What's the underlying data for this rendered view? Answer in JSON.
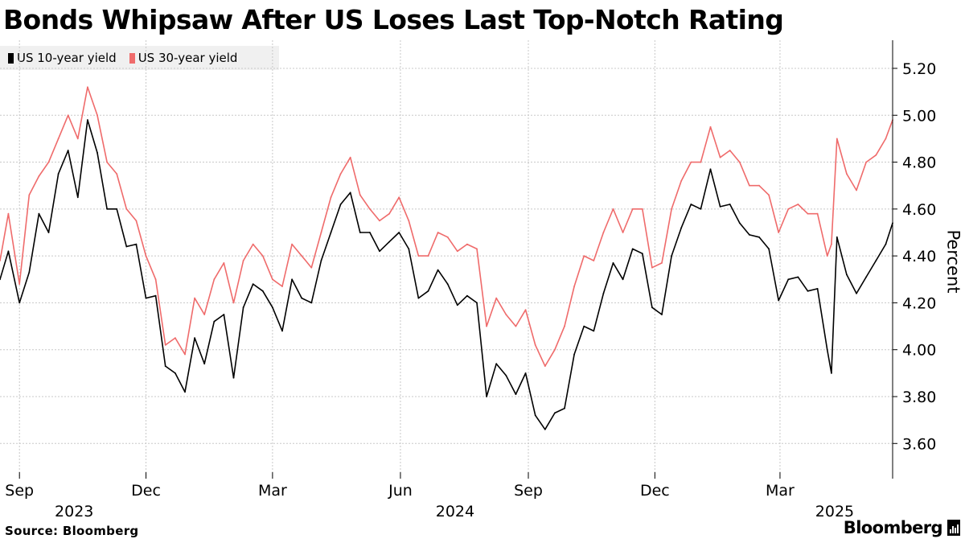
{
  "title": "Bonds Whipsaw After US Loses Last Top-Notch Rating",
  "legend": [
    {
      "label": "US 10-year yield",
      "color": "#000000"
    },
    {
      "label": "US 30-year yield",
      "color": "#ef6b6b"
    }
  ],
  "source": "Source: Bloomberg",
  "brand": "Bloomberg",
  "colors": {
    "ten_year": "#000000",
    "thirty_year": "#ef6b6b",
    "grid": "#c8c8c8",
    "legend_bg": "#f0f0f0"
  },
  "chart_data": {
    "type": "line",
    "ylabel": "Percent",
    "xlabel": "",
    "ylim": [
      3.45,
      5.32
    ],
    "y_ticks": [
      3.6,
      3.8,
      4.0,
      4.2,
      4.4,
      4.6,
      4.8,
      5.0,
      5.2
    ],
    "y_tick_labels": [
      "3.60",
      "3.80",
      "4.00",
      "4.20",
      "4.40",
      "4.60",
      "4.80",
      "5.00",
      "5.20"
    ],
    "y_axis_position": "right",
    "grid": true,
    "legend_position": "top-left",
    "x_range": [
      "2023-08-18",
      "2025-05-21"
    ],
    "x_ticks": [
      {
        "date": "2023-09-01",
        "label": "Sep",
        "year": "2023"
      },
      {
        "date": "2023-12-01",
        "label": "Dec",
        "year": ""
      },
      {
        "date": "2024-03-01",
        "label": "Mar",
        "year": ""
      },
      {
        "date": "2024-06-01",
        "label": "Jun",
        "year": "2024"
      },
      {
        "date": "2024-09-01",
        "label": "Sep",
        "year": ""
      },
      {
        "date": "2024-12-01",
        "label": "Dec",
        "year": ""
      },
      {
        "date": "2025-03-01",
        "label": "Mar",
        "year": "2025"
      }
    ],
    "series": [
      {
        "name": "US 10-year yield",
        "color": "#000000",
        "points": [
          [
            "2023-08-18",
            4.3
          ],
          [
            "2023-08-24",
            4.42
          ],
          [
            "2023-09-01",
            4.2
          ],
          [
            "2023-09-08",
            4.33
          ],
          [
            "2023-09-15",
            4.58
          ],
          [
            "2023-09-22",
            4.5
          ],
          [
            "2023-09-29",
            4.75
          ],
          [
            "2023-10-06",
            4.85
          ],
          [
            "2023-10-13",
            4.65
          ],
          [
            "2023-10-20",
            4.98
          ],
          [
            "2023-10-27",
            4.84
          ],
          [
            "2023-11-03",
            4.6
          ],
          [
            "2023-11-10",
            4.6
          ],
          [
            "2023-11-17",
            4.44
          ],
          [
            "2023-11-24",
            4.45
          ],
          [
            "2023-12-01",
            4.22
          ],
          [
            "2023-12-08",
            4.23
          ],
          [
            "2023-12-15",
            3.93
          ],
          [
            "2023-12-22",
            3.9
          ],
          [
            "2023-12-29",
            3.82
          ],
          [
            "2024-01-05",
            4.05
          ],
          [
            "2024-01-12",
            3.94
          ],
          [
            "2024-01-19",
            4.12
          ],
          [
            "2024-01-26",
            4.15
          ],
          [
            "2024-02-02",
            3.88
          ],
          [
            "2024-02-09",
            4.18
          ],
          [
            "2024-02-16",
            4.28
          ],
          [
            "2024-02-23",
            4.25
          ],
          [
            "2024-03-01",
            4.18
          ],
          [
            "2024-03-08",
            4.08
          ],
          [
            "2024-03-15",
            4.3
          ],
          [
            "2024-03-22",
            4.22
          ],
          [
            "2024-03-29",
            4.2
          ],
          [
            "2024-04-05",
            4.38
          ],
          [
            "2024-04-12",
            4.5
          ],
          [
            "2024-04-19",
            4.62
          ],
          [
            "2024-04-26",
            4.67
          ],
          [
            "2024-05-03",
            4.5
          ],
          [
            "2024-05-10",
            4.5
          ],
          [
            "2024-05-17",
            4.42
          ],
          [
            "2024-05-24",
            4.46
          ],
          [
            "2024-05-31",
            4.5
          ],
          [
            "2024-06-07",
            4.43
          ],
          [
            "2024-06-14",
            4.22
          ],
          [
            "2024-06-21",
            4.25
          ],
          [
            "2024-06-28",
            4.34
          ],
          [
            "2024-07-05",
            4.28
          ],
          [
            "2024-07-12",
            4.19
          ],
          [
            "2024-07-19",
            4.23
          ],
          [
            "2024-07-26",
            4.2
          ],
          [
            "2024-08-02",
            3.8
          ],
          [
            "2024-08-09",
            3.94
          ],
          [
            "2024-08-16",
            3.89
          ],
          [
            "2024-08-23",
            3.81
          ],
          [
            "2024-08-30",
            3.9
          ],
          [
            "2024-09-06",
            3.72
          ],
          [
            "2024-09-13",
            3.66
          ],
          [
            "2024-09-20",
            3.73
          ],
          [
            "2024-09-27",
            3.75
          ],
          [
            "2024-10-04",
            3.98
          ],
          [
            "2024-10-11",
            4.1
          ],
          [
            "2024-10-18",
            4.08
          ],
          [
            "2024-10-25",
            4.24
          ],
          [
            "2024-11-01",
            4.37
          ],
          [
            "2024-11-08",
            4.3
          ],
          [
            "2024-11-15",
            4.43
          ],
          [
            "2024-11-22",
            4.41
          ],
          [
            "2024-11-29",
            4.18
          ],
          [
            "2024-12-06",
            4.15
          ],
          [
            "2024-12-13",
            4.4
          ],
          [
            "2024-12-20",
            4.52
          ],
          [
            "2024-12-27",
            4.62
          ],
          [
            "2025-01-03",
            4.6
          ],
          [
            "2025-01-10",
            4.77
          ],
          [
            "2025-01-17",
            4.61
          ],
          [
            "2025-01-24",
            4.62
          ],
          [
            "2025-01-31",
            4.54
          ],
          [
            "2025-02-07",
            4.49
          ],
          [
            "2025-02-14",
            4.48
          ],
          [
            "2025-02-21",
            4.43
          ],
          [
            "2025-02-28",
            4.21
          ],
          [
            "2025-03-07",
            4.3
          ],
          [
            "2025-03-14",
            4.31
          ],
          [
            "2025-03-21",
            4.25
          ],
          [
            "2025-03-28",
            4.26
          ],
          [
            "2025-04-04",
            4.0
          ],
          [
            "2025-04-07",
            3.9
          ],
          [
            "2025-04-11",
            4.48
          ],
          [
            "2025-04-18",
            4.32
          ],
          [
            "2025-04-25",
            4.24
          ],
          [
            "2025-05-02",
            4.31
          ],
          [
            "2025-05-09",
            4.38
          ],
          [
            "2025-05-16",
            4.45
          ],
          [
            "2025-05-21",
            4.54
          ]
        ]
      },
      {
        "name": "US 30-year yield",
        "color": "#ef6b6b",
        "points": [
          [
            "2023-08-18",
            4.38
          ],
          [
            "2023-08-24",
            4.58
          ],
          [
            "2023-09-01",
            4.28
          ],
          [
            "2023-09-08",
            4.66
          ],
          [
            "2023-09-15",
            4.74
          ],
          [
            "2023-09-22",
            4.8
          ],
          [
            "2023-09-29",
            4.9
          ],
          [
            "2023-10-06",
            5.0
          ],
          [
            "2023-10-13",
            4.9
          ],
          [
            "2023-10-20",
            5.12
          ],
          [
            "2023-10-27",
            5.0
          ],
          [
            "2023-11-03",
            4.8
          ],
          [
            "2023-11-10",
            4.75
          ],
          [
            "2023-11-17",
            4.6
          ],
          [
            "2023-11-24",
            4.55
          ],
          [
            "2023-12-01",
            4.4
          ],
          [
            "2023-12-08",
            4.3
          ],
          [
            "2023-12-15",
            4.02
          ],
          [
            "2023-12-22",
            4.05
          ],
          [
            "2023-12-29",
            3.98
          ],
          [
            "2024-01-05",
            4.22
          ],
          [
            "2024-01-12",
            4.15
          ],
          [
            "2024-01-19",
            4.3
          ],
          [
            "2024-01-26",
            4.37
          ],
          [
            "2024-02-02",
            4.2
          ],
          [
            "2024-02-09",
            4.38
          ],
          [
            "2024-02-16",
            4.45
          ],
          [
            "2024-02-23",
            4.4
          ],
          [
            "2024-03-01",
            4.3
          ],
          [
            "2024-03-08",
            4.27
          ],
          [
            "2024-03-15",
            4.45
          ],
          [
            "2024-03-22",
            4.4
          ],
          [
            "2024-03-29",
            4.35
          ],
          [
            "2024-04-05",
            4.5
          ],
          [
            "2024-04-12",
            4.65
          ],
          [
            "2024-04-19",
            4.75
          ],
          [
            "2024-04-26",
            4.82
          ],
          [
            "2024-05-03",
            4.66
          ],
          [
            "2024-05-10",
            4.6
          ],
          [
            "2024-05-17",
            4.55
          ],
          [
            "2024-05-24",
            4.58
          ],
          [
            "2024-05-31",
            4.65
          ],
          [
            "2024-06-07",
            4.55
          ],
          [
            "2024-06-14",
            4.4
          ],
          [
            "2024-06-21",
            4.4
          ],
          [
            "2024-06-28",
            4.5
          ],
          [
            "2024-07-05",
            4.48
          ],
          [
            "2024-07-12",
            4.42
          ],
          [
            "2024-07-19",
            4.45
          ],
          [
            "2024-07-26",
            4.43
          ],
          [
            "2024-08-02",
            4.1
          ],
          [
            "2024-08-09",
            4.22
          ],
          [
            "2024-08-16",
            4.15
          ],
          [
            "2024-08-23",
            4.1
          ],
          [
            "2024-08-30",
            4.17
          ],
          [
            "2024-09-06",
            4.02
          ],
          [
            "2024-09-13",
            3.93
          ],
          [
            "2024-09-20",
            4.0
          ],
          [
            "2024-09-27",
            4.1
          ],
          [
            "2024-10-04",
            4.27
          ],
          [
            "2024-10-11",
            4.4
          ],
          [
            "2024-10-18",
            4.38
          ],
          [
            "2024-10-25",
            4.5
          ],
          [
            "2024-11-01",
            4.6
          ],
          [
            "2024-11-08",
            4.5
          ],
          [
            "2024-11-15",
            4.6
          ],
          [
            "2024-11-22",
            4.6
          ],
          [
            "2024-11-29",
            4.35
          ],
          [
            "2024-12-06",
            4.37
          ],
          [
            "2024-12-13",
            4.6
          ],
          [
            "2024-12-20",
            4.72
          ],
          [
            "2024-12-27",
            4.8
          ],
          [
            "2025-01-03",
            4.8
          ],
          [
            "2025-01-10",
            4.95
          ],
          [
            "2025-01-17",
            4.82
          ],
          [
            "2025-01-24",
            4.85
          ],
          [
            "2025-01-31",
            4.8
          ],
          [
            "2025-02-07",
            4.7
          ],
          [
            "2025-02-14",
            4.7
          ],
          [
            "2025-02-21",
            4.66
          ],
          [
            "2025-02-28",
            4.5
          ],
          [
            "2025-03-07",
            4.6
          ],
          [
            "2025-03-14",
            4.62
          ],
          [
            "2025-03-21",
            4.58
          ],
          [
            "2025-03-28",
            4.58
          ],
          [
            "2025-04-04",
            4.4
          ],
          [
            "2025-04-07",
            4.45
          ],
          [
            "2025-04-11",
            4.9
          ],
          [
            "2025-04-18",
            4.75
          ],
          [
            "2025-04-25",
            4.68
          ],
          [
            "2025-05-02",
            4.8
          ],
          [
            "2025-05-09",
            4.83
          ],
          [
            "2025-05-16",
            4.9
          ],
          [
            "2025-05-21",
            4.98
          ]
        ]
      }
    ]
  }
}
